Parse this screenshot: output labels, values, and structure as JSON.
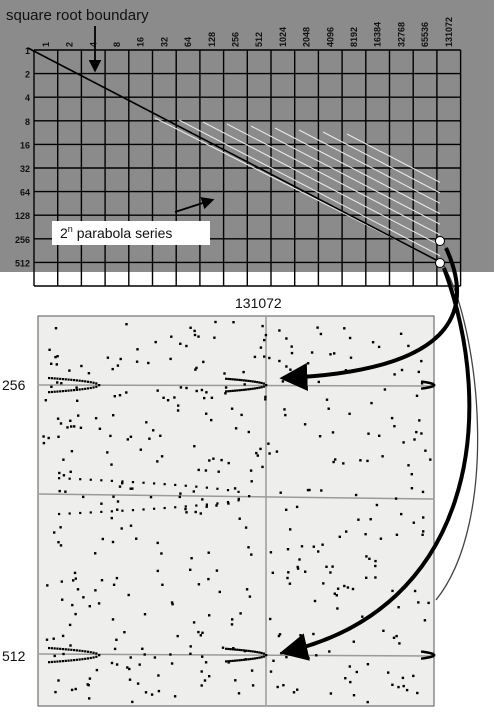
{
  "top_panel": {
    "title": "square root boundary",
    "series_label": "parabola series",
    "series_prefix": "2",
    "series_superscript": "n",
    "column_labels": [
      "1",
      "2",
      "4",
      "8",
      "16",
      "32",
      "64",
      "128",
      "256",
      "512",
      "1024",
      "2048",
      "4096",
      "8192",
      "16384",
      "32768",
      "65536",
      "131072"
    ],
    "row_labels": [
      "1",
      "2",
      "4",
      "8",
      "16",
      "32",
      "64",
      "128",
      "256",
      "512"
    ],
    "background_color": "#8b8b8b",
    "grid_color": "#000000",
    "highlight_color": "#ffffff"
  },
  "bottom_panel": {
    "column_label": "131072",
    "row_label_upper": "256",
    "row_label_lower": "512",
    "background_color": "#eeeeec",
    "line_color": "#9a9a9a",
    "dot_color": "#000000"
  }
}
